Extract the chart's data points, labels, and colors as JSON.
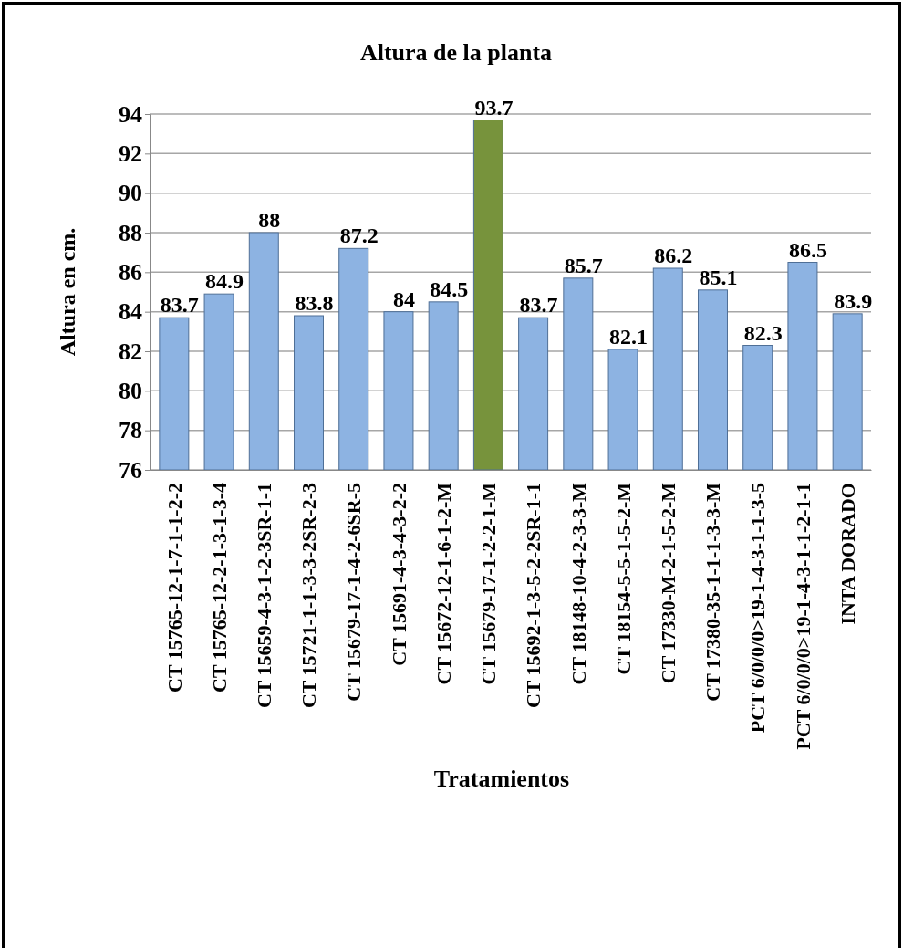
{
  "chart_data": {
    "type": "bar",
    "title": "Altura de la planta",
    "xlabel": "Tratamientos",
    "ylabel": "Altura en cm.",
    "categories": [
      "CT 15765-12-1-7-1-1-2-2",
      "CT 15765-12-2-1-3-1-3-4",
      "CT 15659-4-3-1-2-3SR-1-1",
      "CT 15721-1-1-3-3-2SR-2-3",
      "CT 15679-17-1-4-2-6SR-5",
      "CT 15691-4-3-4-3-2-2",
      "CT 15672-12-1-6-1-2-M",
      "CT 15679-17-1-2-2-1-M",
      "CT 15692-1-3-5-2-2SR-1-1",
      "CT 18148-10-4-2-3-3-M",
      "CT 18154-5-5-1-5-2-M",
      "CT 17330-M-2-1-5-2-M",
      "CT 17380-35-1-1-1-3-3-M",
      "PCT 6/0/0/0>19-1-4-3-1-1-3-5",
      "PCT 6/0/0/0>19-1-4-3-1-1-2-1-1",
      "INTA DORADO"
    ],
    "values": [
      83.7,
      84.9,
      88,
      83.8,
      87.2,
      84,
      84.5,
      93.7,
      83.7,
      85.7,
      82.1,
      86.2,
      85.1,
      82.3,
      86.5,
      83.9
    ],
    "colors": [
      "#8db3e2",
      "#8db3e2",
      "#8db3e2",
      "#8db3e2",
      "#8db3e2",
      "#8db3e2",
      "#8db3e2",
      "#77933c",
      "#8db3e2",
      "#8db3e2",
      "#8db3e2",
      "#8db3e2",
      "#8db3e2",
      "#8db3e2",
      "#8db3e2",
      "#8db3e2"
    ],
    "ylim": [
      76,
      94
    ],
    "yticks": [
      76,
      78,
      80,
      82,
      84,
      86,
      88,
      90,
      92,
      94
    ],
    "grid": "y",
    "data_labels": true
  }
}
